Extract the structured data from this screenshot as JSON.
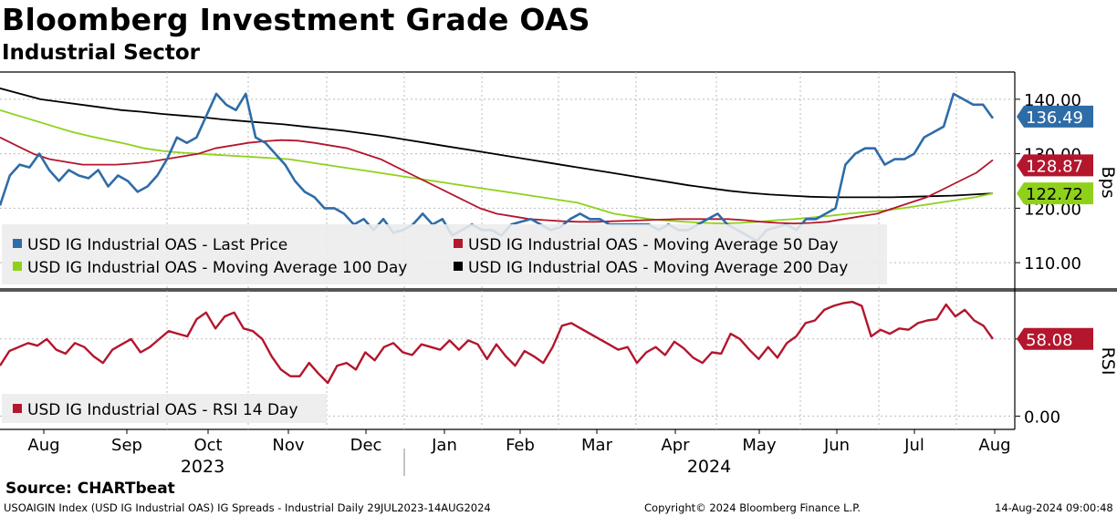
{
  "header": {
    "title": "Bloomberg Investment Grade OAS",
    "subtitle": "Industrial Sector"
  },
  "footer": {
    "source": "Source: CHARTbeat",
    "index_desc": "USOAIGIN Index (USD IG Industrial OAS) IG Spreads - Industrial  Daily 29JUL2023-14AUG2024",
    "copyright": "Copyright© 2024 Bloomberg Finance L.P.",
    "timestamp": "14-Aug-2024 09:00:48"
  },
  "colors": {
    "last_price": "#2e6ca8",
    "ma50": "#b3162d",
    "ma100": "#8fd11a",
    "ma200": "#000000",
    "rsi": "#b3162d"
  },
  "chart_data": [
    {
      "type": "line",
      "title": "Bloomberg Investment Grade OAS",
      "ylabel": "Bps",
      "ylim": [
        105,
        145
      ],
      "y_ticks": [
        "140.00",
        "130.00",
        "120.00",
        "110.00"
      ],
      "y_tick_values": [
        140,
        130,
        120,
        110
      ],
      "legend": [
        "USD IG Industrial OAS - Last Price",
        "USD IG Industrial OAS - Moving Average 50 Day",
        "USD IG Industrial OAS - Moving Average 100 Day",
        "USD IG Industrial OAS - Moving Average 200 Day"
      ],
      "last_value_labels": [
        "136.49",
        "128.87",
        "122.72"
      ],
      "series": [
        {
          "name": "USD IG Industrial OAS - Last Price",
          "values": [
            120.5,
            126,
            128,
            127.5,
            130,
            127,
            125,
            127,
            126,
            125.5,
            127,
            124,
            126,
            125,
            123,
            124,
            126,
            129,
            133,
            132,
            133,
            137,
            141,
            139,
            138,
            141,
            133,
            132,
            130,
            128,
            125,
            123,
            122,
            120,
            120,
            119,
            117,
            118,
            116,
            118,
            115.5,
            116,
            117,
            119,
            117,
            118,
            115,
            116,
            117,
            116,
            116,
            115,
            117,
            117.5,
            118,
            117,
            116,
            116.5,
            118,
            119,
            118,
            118,
            117,
            117,
            117,
            117,
            117,
            116,
            117,
            116,
            116,
            117,
            118,
            119,
            117,
            116,
            115,
            114,
            116,
            116.5,
            117,
            116,
            118,
            118,
            119,
            120,
            128,
            130,
            131,
            131,
            128,
            129,
            129,
            130,
            133,
            134,
            135,
            141,
            140,
            139,
            139,
            136.49
          ]
        },
        {
          "name": "USD IG Industrial OAS - Moving Average 50 Day",
          "values": [
            133,
            131.5,
            130,
            129,
            128.5,
            128,
            128,
            128,
            128.2,
            128.5,
            129,
            129.5,
            130,
            131,
            131.5,
            132,
            132.3,
            132.5,
            132.4,
            132,
            131.5,
            131,
            130,
            129,
            127.5,
            126,
            124.5,
            123,
            121.5,
            120,
            119,
            118.5,
            118,
            117.8,
            117.6,
            117.5,
            117.5,
            117.6,
            117.7,
            117.8,
            117.9,
            118,
            118,
            118,
            118,
            117.8,
            117.5,
            117.3,
            117.2,
            117.3,
            117.5,
            118,
            118.5,
            119,
            120,
            121,
            122,
            123.5,
            125,
            126.5,
            128.87
          ]
        },
        {
          "name": "USD IG Industrial OAS - Moving Average 100 Day",
          "values": [
            138,
            137,
            136,
            135,
            134,
            133.2,
            132.5,
            131.8,
            131,
            130.5,
            130.2,
            130,
            129.8,
            129.6,
            129.4,
            129.2,
            129,
            128.5,
            128,
            127.5,
            127,
            126.5,
            126,
            125.5,
            125,
            124.5,
            124,
            123.5,
            123,
            122.5,
            122,
            121.5,
            121,
            120,
            119,
            118.5,
            118,
            117.7,
            117.5,
            117.3,
            117.2,
            117.3,
            117.5,
            117.8,
            118,
            118.3,
            118.6,
            119,
            119.3,
            119.6,
            120,
            120.5,
            121,
            121.5,
            122,
            122.72
          ]
        },
        {
          "name": "USD IG Industrial OAS - Moving Average 200 Day",
          "values": [
            142,
            141,
            140,
            139.5,
            139,
            138.5,
            138,
            137.7,
            137.3,
            137,
            136.7,
            136.3,
            136,
            135.7,
            135.4,
            135,
            134.6,
            134.2,
            133.7,
            133.2,
            132.6,
            132,
            131.4,
            130.8,
            130.2,
            129.6,
            129,
            128.4,
            127.8,
            127.2,
            126.6,
            126,
            125.4,
            124.8,
            124.2,
            123.7,
            123.2,
            122.8,
            122.5,
            122.3,
            122.1,
            122,
            122,
            122,
            122,
            122.1,
            122.2,
            122.3,
            122.5,
            122.72
          ]
        }
      ]
    },
    {
      "type": "line",
      "ylabel": "RSI",
      "ylim": [
        -10,
        95
      ],
      "y_ticks": [
        "58.08",
        "0.00"
      ],
      "y_tick_values": [
        58.08,
        0
      ],
      "legend": [
        "USD IG Industrial OAS - RSI 14 Day"
      ],
      "last_value_labels": [
        "58.08"
      ],
      "series": [
        {
          "name": "USD IG Industrial OAS - RSI 14 Day",
          "values": [
            38,
            49,
            52,
            55,
            53,
            58,
            50,
            47,
            55,
            52,
            45,
            40,
            50,
            54,
            58,
            48,
            52,
            58,
            64,
            62,
            60,
            73,
            78,
            66,
            75,
            78,
            66,
            64,
            58,
            45,
            35,
            30,
            30,
            40,
            32,
            25,
            38,
            40,
            35,
            48,
            42,
            52,
            55,
            48,
            46,
            54,
            52,
            50,
            57,
            50,
            57,
            54,
            43,
            54,
            45,
            38,
            49,
            45,
            40,
            52,
            68,
            70,
            66,
            62,
            58,
            54,
            50,
            52,
            40,
            48,
            52,
            46,
            56,
            51,
            44,
            40,
            48,
            47,
            62,
            58,
            50,
            43,
            52,
            44,
            55,
            60,
            70,
            72,
            80,
            83,
            85,
            86,
            83,
            60,
            65,
            62,
            66,
            65,
            70,
            72,
            73,
            84,
            75,
            80,
            72,
            68,
            58.08
          ]
        }
      ]
    }
  ],
  "x_axis": {
    "months": [
      "Aug",
      "Sep",
      "Oct",
      "Nov",
      "Dec",
      "Jan",
      "Feb",
      "Mar",
      "Apr",
      "May",
      "Jun",
      "Jul",
      "Aug"
    ],
    "years": [
      "2023",
      "2024"
    ]
  }
}
